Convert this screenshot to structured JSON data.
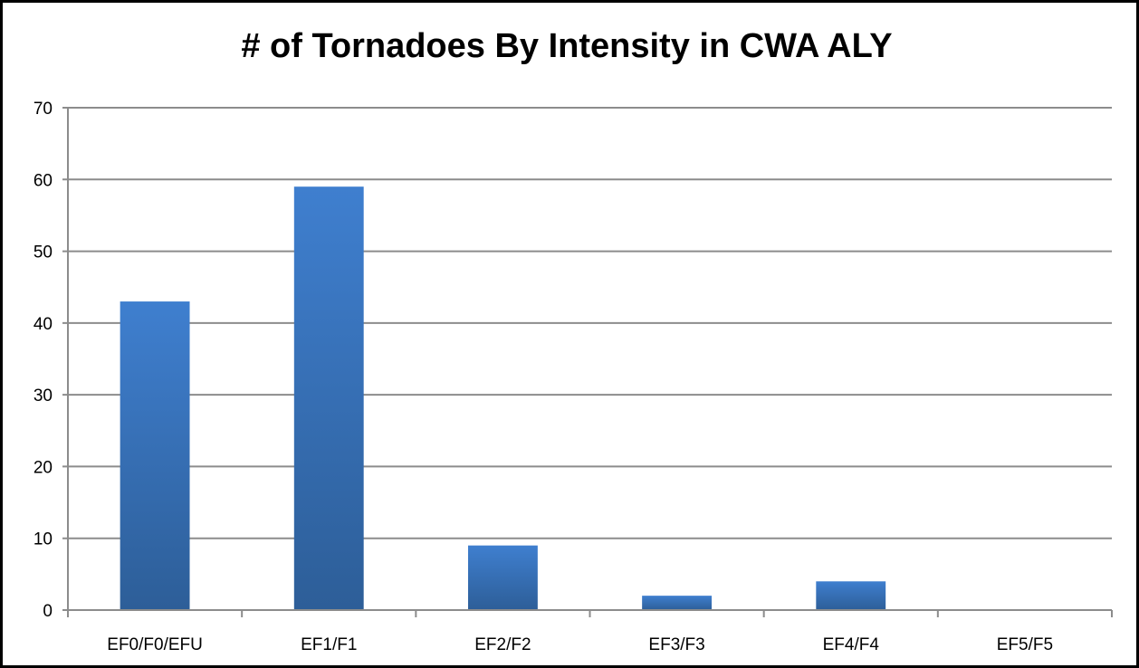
{
  "chart_data": {
    "type": "bar",
    "title": "# of Tornadoes By Intensity in CWA ALY",
    "xlabel": "",
    "ylabel": "",
    "categories": [
      "EF0/F0/EFU",
      "EF1/F1",
      "EF2/F2",
      "EF3/F3",
      "EF4/F4",
      "EF5/F5"
    ],
    "values": [
      43,
      59,
      9,
      2,
      4,
      0
    ],
    "ylim": [
      0,
      70
    ],
    "yticks": [
      0,
      10,
      20,
      30,
      40,
      50,
      60,
      70
    ],
    "grid": true,
    "legend": "none",
    "colors": {
      "bar_top": "#3f7fcf",
      "bar_bottom": "#2d5e98",
      "gridline": "#8c8c8c",
      "axis": "#8c8c8c"
    }
  }
}
